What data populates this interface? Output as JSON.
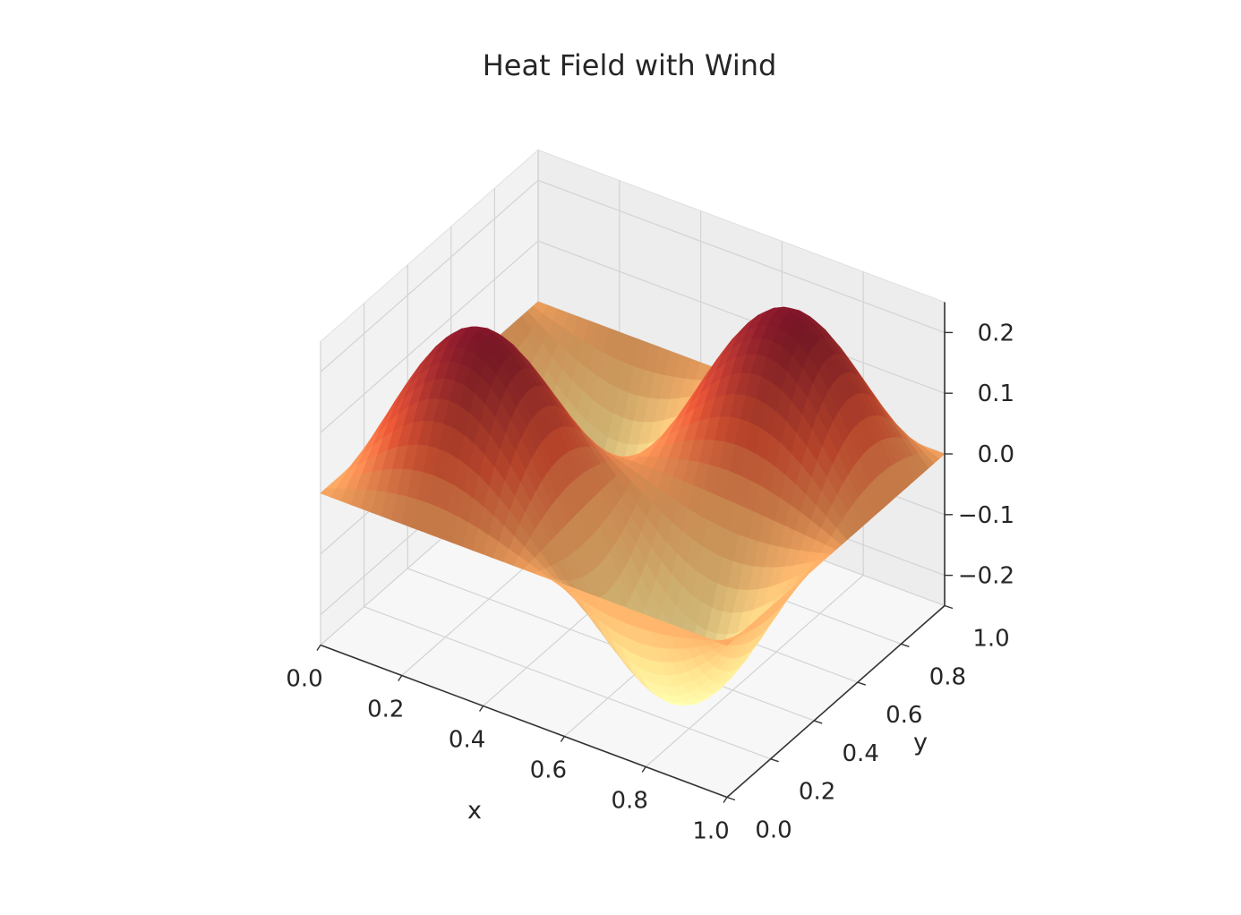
{
  "chart_data": {
    "type": "surface3d",
    "title": "Heat Field with Wind",
    "xlabel": "x",
    "ylabel": "y",
    "zlabel": "",
    "xlim": [
      0.0,
      1.0
    ],
    "ylim": [
      0.0,
      1.0
    ],
    "zlim": [
      -0.25,
      0.25
    ],
    "x_ticks": [
      "0.0",
      "0.2",
      "0.4",
      "0.6",
      "0.8",
      "1.0"
    ],
    "y_ticks": [
      "0.0",
      "0.2",
      "0.4",
      "0.6",
      "0.8",
      "1.0"
    ],
    "z_ticks": [
      "−0.2",
      "−0.1",
      "0.0",
      "0.1",
      "0.2"
    ],
    "x_tick_values": [
      0.0,
      0.2,
      0.4,
      0.6,
      0.8,
      1.0
    ],
    "y_tick_values": [
      0.0,
      0.2,
      0.4,
      0.6,
      0.8,
      1.0
    ],
    "z_tick_values": [
      -0.2,
      -0.1,
      0.0,
      0.1,
      0.2
    ],
    "grid": true,
    "colormap": "YlOrRd",
    "colors": {
      "low": "#fff1a8",
      "mid": "#f4a05a",
      "high": "#8b1a2b"
    },
    "surface_function": "z = 0.25 * sin(2*pi*x) * sin(2*pi*y) + wind tilt",
    "surface_samples": {
      "x": [
        0.0,
        0.25,
        0.5,
        0.75,
        1.0
      ],
      "y": [
        0.0,
        0.25,
        0.5,
        0.75,
        1.0
      ],
      "z": [
        [
          0.0,
          0.0,
          0.0,
          0.0,
          0.0
        ],
        [
          0.0,
          0.24,
          0.0,
          -0.24,
          0.0
        ],
        [
          0.0,
          0.0,
          0.0,
          0.0,
          0.0
        ],
        [
          0.0,
          -0.24,
          0.0,
          0.24,
          0.0
        ],
        [
          0.0,
          0.0,
          0.0,
          0.0,
          0.0
        ]
      ]
    }
  }
}
